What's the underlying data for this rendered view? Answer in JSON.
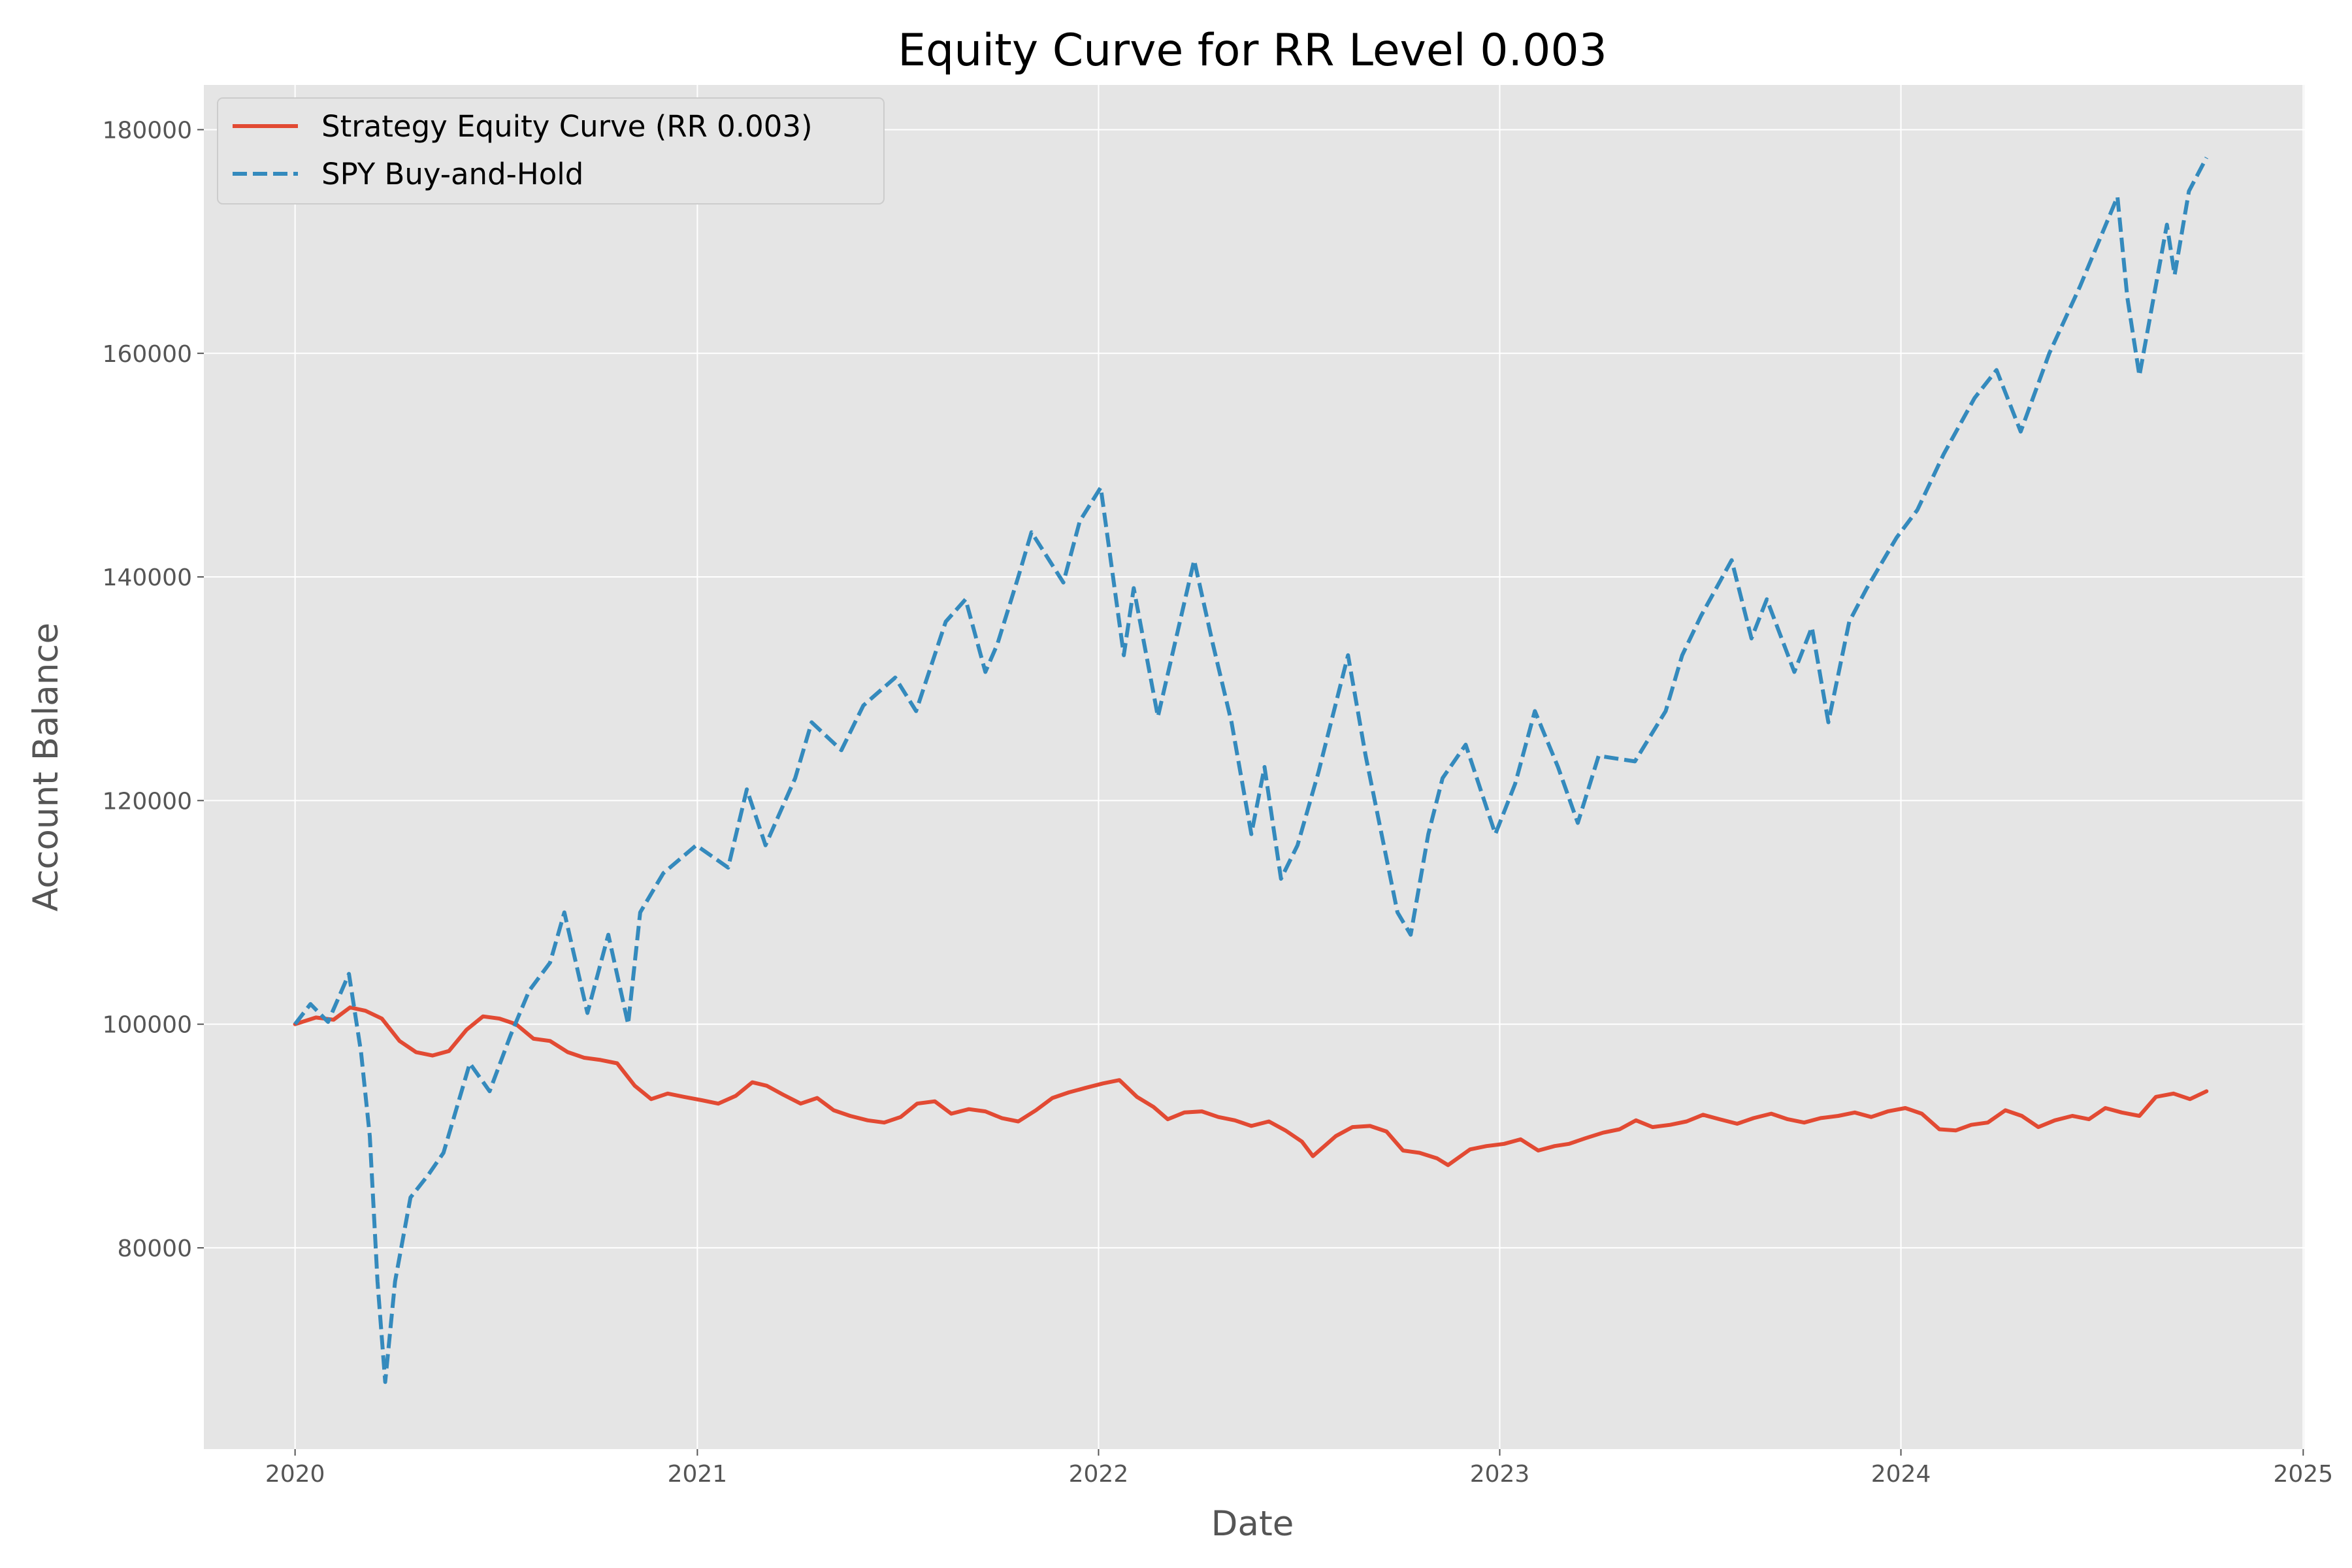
{
  "chart_data": {
    "type": "line",
    "title": "Equity Curve for RR Level 0.003",
    "xlabel": "Date",
    "ylabel": "Account Balance",
    "x_axis_type": "date",
    "xlim": [
      "2019-10-10",
      "2025-01-02"
    ],
    "ylim": [
      62000,
      184000
    ],
    "x_ticks": [
      {
        "value": "2020-01-01",
        "label": "2020"
      },
      {
        "value": "2021-01-01",
        "label": "2021"
      },
      {
        "value": "2022-01-01",
        "label": "2022"
      },
      {
        "value": "2023-01-01",
        "label": "2023"
      },
      {
        "value": "2024-01-01",
        "label": "2024"
      },
      {
        "value": "2025-01-01",
        "label": "2025"
      }
    ],
    "y_ticks": [
      {
        "value": 80000,
        "label": "80000"
      },
      {
        "value": 100000,
        "label": "100000"
      },
      {
        "value": 120000,
        "label": "120000"
      },
      {
        "value": 140000,
        "label": "140000"
      },
      {
        "value": 160000,
        "label": "160000"
      },
      {
        "value": 180000,
        "label": "180000"
      }
    ],
    "grid": true,
    "legend_position": "top-left",
    "colors": {
      "background": "#E5E5E5",
      "grid": "#FFFFFF",
      "strategy": "#E24A33",
      "spy": "#348ABD"
    },
    "series": [
      {
        "name": "Strategy Equity Curve (RR 0.003)",
        "style": "solid",
        "color": "#E24A33",
        "points": [
          [
            "2020-01-01",
            100000
          ],
          [
            "2020-01-20",
            100600
          ],
          [
            "2020-02-05",
            100400
          ],
          [
            "2020-02-20",
            101500
          ],
          [
            "2020-03-05",
            101200
          ],
          [
            "2020-03-20",
            100500
          ],
          [
            "2020-04-05",
            98500
          ],
          [
            "2020-04-20",
            97500
          ],
          [
            "2020-05-05",
            97200
          ],
          [
            "2020-05-20",
            97600
          ],
          [
            "2020-06-05",
            99500
          ],
          [
            "2020-06-20",
            100700
          ],
          [
            "2020-07-05",
            100500
          ],
          [
            "2020-07-20",
            100000
          ],
          [
            "2020-08-05",
            98700
          ],
          [
            "2020-08-20",
            98500
          ],
          [
            "2020-09-05",
            97500
          ],
          [
            "2020-09-20",
            97000
          ],
          [
            "2020-10-05",
            96800
          ],
          [
            "2020-10-20",
            96500
          ],
          [
            "2020-11-05",
            94500
          ],
          [
            "2020-11-20",
            93300
          ],
          [
            "2020-12-05",
            93800
          ],
          [
            "2020-12-20",
            93500
          ],
          [
            "2021-01-05",
            93200
          ],
          [
            "2021-01-20",
            92900
          ],
          [
            "2021-02-05",
            93600
          ],
          [
            "2021-02-20",
            94800
          ],
          [
            "2021-03-05",
            94500
          ],
          [
            "2021-03-20",
            93700
          ],
          [
            "2021-04-05",
            92900
          ],
          [
            "2021-04-20",
            93400
          ],
          [
            "2021-05-05",
            92300
          ],
          [
            "2021-05-20",
            91800
          ],
          [
            "2021-06-05",
            91400
          ],
          [
            "2021-06-20",
            91200
          ],
          [
            "2021-07-05",
            91700
          ],
          [
            "2021-07-20",
            92900
          ],
          [
            "2021-08-05",
            93100
          ],
          [
            "2021-08-20",
            92000
          ],
          [
            "2021-09-05",
            92400
          ],
          [
            "2021-09-20",
            92200
          ],
          [
            "2021-10-05",
            91600
          ],
          [
            "2021-10-20",
            91300
          ],
          [
            "2021-11-05",
            92300
          ],
          [
            "2021-11-20",
            93400
          ],
          [
            "2021-12-05",
            93900
          ],
          [
            "2021-12-20",
            94300
          ],
          [
            "2022-01-05",
            94700
          ],
          [
            "2022-01-20",
            95000
          ],
          [
            "2022-02-05",
            93500
          ],
          [
            "2022-02-20",
            92600
          ],
          [
            "2022-03-05",
            91500
          ],
          [
            "2022-03-20",
            92100
          ],
          [
            "2022-04-05",
            92200
          ],
          [
            "2022-04-20",
            91700
          ],
          [
            "2022-05-05",
            91400
          ],
          [
            "2022-05-20",
            90900
          ],
          [
            "2022-06-05",
            91300
          ],
          [
            "2022-06-20",
            90500
          ],
          [
            "2022-07-05",
            89500
          ],
          [
            "2022-07-15",
            88200
          ],
          [
            "2022-08-05",
            90000
          ],
          [
            "2022-08-20",
            90800
          ],
          [
            "2022-09-05",
            90900
          ],
          [
            "2022-09-20",
            90400
          ],
          [
            "2022-10-05",
            88700
          ],
          [
            "2022-10-20",
            88500
          ],
          [
            "2022-11-05",
            88000
          ],
          [
            "2022-11-15",
            87400
          ],
          [
            "2022-12-05",
            88800
          ],
          [
            "2022-12-20",
            89100
          ],
          [
            "2023-01-05",
            89300
          ],
          [
            "2023-01-20",
            89700
          ],
          [
            "2023-02-05",
            88700
          ],
          [
            "2023-02-20",
            89100
          ],
          [
            "2023-03-05",
            89300
          ],
          [
            "2023-03-20",
            89800
          ],
          [
            "2023-04-05",
            90300
          ],
          [
            "2023-04-20",
            90600
          ],
          [
            "2023-05-05",
            91400
          ],
          [
            "2023-05-20",
            90800
          ],
          [
            "2023-06-05",
            91000
          ],
          [
            "2023-06-20",
            91300
          ],
          [
            "2023-07-05",
            91900
          ],
          [
            "2023-07-20",
            91500
          ],
          [
            "2023-08-05",
            91100
          ],
          [
            "2023-08-20",
            91600
          ],
          [
            "2023-09-05",
            92000
          ],
          [
            "2023-09-20",
            91500
          ],
          [
            "2023-10-05",
            91200
          ],
          [
            "2023-10-20",
            91600
          ],
          [
            "2023-11-05",
            91800
          ],
          [
            "2023-11-20",
            92100
          ],
          [
            "2023-12-05",
            91700
          ],
          [
            "2023-12-20",
            92200
          ],
          [
            "2024-01-05",
            92500
          ],
          [
            "2024-01-20",
            92000
          ],
          [
            "2024-02-05",
            90600
          ],
          [
            "2024-02-20",
            90500
          ],
          [
            "2024-03-05",
            91000
          ],
          [
            "2024-03-20",
            91200
          ],
          [
            "2024-04-05",
            92300
          ],
          [
            "2024-04-20",
            91800
          ],
          [
            "2024-05-05",
            90800
          ],
          [
            "2024-05-20",
            91400
          ],
          [
            "2024-06-05",
            91800
          ],
          [
            "2024-06-20",
            91500
          ],
          [
            "2024-07-05",
            92500
          ],
          [
            "2024-07-20",
            92100
          ],
          [
            "2024-08-05",
            91800
          ],
          [
            "2024-08-20",
            93500
          ],
          [
            "2024-09-05",
            93800
          ],
          [
            "2024-09-20",
            93300
          ],
          [
            "2024-10-05",
            94000
          ]
        ]
      },
      {
        "name": "SPY Buy-and-Hold",
        "style": "dashed",
        "color": "#348ABD",
        "points": [
          [
            "2020-01-01",
            100000
          ],
          [
            "2020-01-15",
            101800
          ],
          [
            "2020-01-31",
            100200
          ],
          [
            "2020-02-19",
            104500
          ],
          [
            "2020-03-01",
            97500
          ],
          [
            "2020-03-09",
            90000
          ],
          [
            "2020-03-16",
            77000
          ],
          [
            "2020-03-23",
            68000
          ],
          [
            "2020-04-01",
            77000
          ],
          [
            "2020-04-15",
            84500
          ],
          [
            "2020-05-01",
            86500
          ],
          [
            "2020-05-15",
            88500
          ],
          [
            "2020-06-08",
            96500
          ],
          [
            "2020-06-26",
            94000
          ],
          [
            "2020-07-15",
            99000
          ],
          [
            "2020-08-01",
            103000
          ],
          [
            "2020-08-20",
            105500
          ],
          [
            "2020-09-02",
            110000
          ],
          [
            "2020-09-23",
            101000
          ],
          [
            "2020-10-12",
            108000
          ],
          [
            "2020-10-30",
            100000
          ],
          [
            "2020-11-10",
            110000
          ],
          [
            "2020-12-01",
            113500
          ],
          [
            "2020-12-31",
            116000
          ],
          [
            "2021-01-29",
            114000
          ],
          [
            "2021-02-15",
            121000
          ],
          [
            "2021-03-04",
            116000
          ],
          [
            "2021-03-31",
            122000
          ],
          [
            "2021-04-15",
            127000
          ],
          [
            "2021-05-12",
            124500
          ],
          [
            "2021-06-01",
            128500
          ],
          [
            "2021-06-30",
            131000
          ],
          [
            "2021-07-19",
            128000
          ],
          [
            "2021-08-15",
            136000
          ],
          [
            "2021-09-02",
            138000
          ],
          [
            "2021-09-20",
            131500
          ],
          [
            "2021-10-01",
            134000
          ],
          [
            "2021-10-20",
            140000
          ],
          [
            "2021-11-01",
            144000
          ],
          [
            "2021-11-30",
            139500
          ],
          [
            "2021-12-15",
            145000
          ],
          [
            "2022-01-03",
            148000
          ],
          [
            "2022-01-24",
            133000
          ],
          [
            "2022-02-02",
            139000
          ],
          [
            "2022-02-24",
            127500
          ],
          [
            "2022-03-29",
            141500
          ],
          [
            "2022-04-15",
            134000
          ],
          [
            "2022-05-02",
            127000
          ],
          [
            "2022-05-20",
            117000
          ],
          [
            "2022-06-01",
            123000
          ],
          [
            "2022-06-16",
            113000
          ],
          [
            "2022-07-01",
            116000
          ],
          [
            "2022-07-20",
            122500
          ],
          [
            "2022-08-16",
            133000
          ],
          [
            "2022-09-01",
            124000
          ],
          [
            "2022-09-30",
            110000
          ],
          [
            "2022-10-12",
            108000
          ],
          [
            "2022-10-28",
            117000
          ],
          [
            "2022-11-10",
            122000
          ],
          [
            "2022-12-01",
            125000
          ],
          [
            "2022-12-28",
            117000
          ],
          [
            "2023-01-15",
            121500
          ],
          [
            "2023-02-02",
            128000
          ],
          [
            "2023-02-23",
            123000
          ],
          [
            "2023-03-13",
            118000
          ],
          [
            "2023-04-01",
            124000
          ],
          [
            "2023-05-04",
            123500
          ],
          [
            "2023-06-01",
            128000
          ],
          [
            "2023-06-16",
            133000
          ],
          [
            "2023-07-03",
            136500
          ],
          [
            "2023-07-31",
            141500
          ],
          [
            "2023-08-18",
            134500
          ],
          [
            "2023-09-01",
            138000
          ],
          [
            "2023-09-26",
            131500
          ],
          [
            "2023-10-12",
            135500
          ],
          [
            "2023-10-27",
            127000
          ],
          [
            "2023-11-15",
            136000
          ],
          [
            "2023-12-01",
            139000
          ],
          [
            "2023-12-28",
            143500
          ],
          [
            "2024-01-16",
            146000
          ],
          [
            "2024-02-09",
            151000
          ],
          [
            "2024-03-08",
            156000
          ],
          [
            "2024-03-28",
            158500
          ],
          [
            "2024-04-19",
            153000
          ],
          [
            "2024-05-15",
            160000
          ],
          [
            "2024-06-12",
            166000
          ],
          [
            "2024-07-16",
            174000
          ],
          [
            "2024-07-25",
            165000
          ],
          [
            "2024-08-05",
            158000
          ],
          [
            "2024-08-30",
            171500
          ],
          [
            "2024-09-06",
            167000
          ],
          [
            "2024-09-19",
            174500
          ],
          [
            "2024-10-05",
            177500
          ]
        ]
      }
    ]
  }
}
